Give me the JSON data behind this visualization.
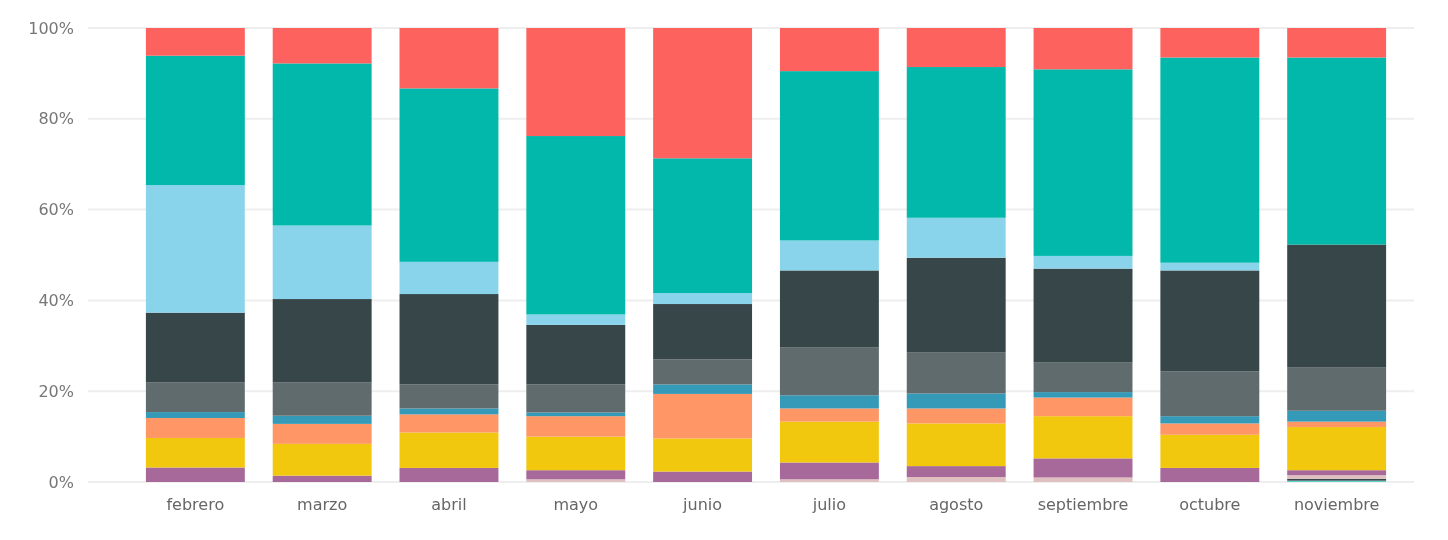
{
  "chart_data": {
    "type": "bar",
    "stacked": true,
    "categories": [
      "febrero",
      "marzo",
      "abril",
      "mayo",
      "junio",
      "julio",
      "agosto",
      "septiembre",
      "octubre",
      "noviembre"
    ],
    "series": [
      {
        "color": "#5fd3c9",
        "values": [
          null,
          null,
          null,
          null,
          null,
          null,
          null,
          null,
          null,
          0.3
        ]
      },
      {
        "color": "#374649",
        "values": [
          null,
          null,
          null,
          null,
          null,
          null,
          null,
          null,
          null,
          0.4
        ]
      },
      {
        "color": "#dfbfbf",
        "values": [
          null,
          null,
          null,
          0.6,
          null,
          0.6,
          1.1,
          1.0,
          null,
          0.8
        ]
      },
      {
        "color": "#a66999",
        "values": [
          3.2,
          1.4,
          3.1,
          2.0,
          2.3,
          3.7,
          2.4,
          4.2,
          3.1,
          1.1
        ]
      },
      {
        "color": "#f2c80f",
        "values": [
          6.5,
          7.0,
          7.8,
          7.4,
          7.3,
          9.0,
          9.4,
          9.3,
          7.3,
          9.5
        ]
      },
      {
        "color": "#fe9666",
        "values": [
          4.4,
          4.4,
          4.0,
          4.5,
          9.8,
          2.9,
          3.3,
          4.1,
          2.5,
          1.2
        ]
      },
      {
        "color": "#3599b8",
        "values": [
          1.3,
          1.8,
          1.3,
          0.8,
          2.1,
          2.9,
          3.3,
          1.2,
          1.6,
          2.4
        ]
      },
      {
        "color": "#5f6b6d",
        "values": [
          6.5,
          7.3,
          5.3,
          6.2,
          5.5,
          10.6,
          9.0,
          6.6,
          9.9,
          9.6
        ]
      },
      {
        "color": "#374649",
        "values": [
          15.4,
          18.4,
          19.9,
          13.1,
          12.2,
          16.9,
          20.9,
          20.6,
          22.2,
          27.0
        ]
      },
      {
        "color": "#8ad4eb",
        "values": [
          28.1,
          16.2,
          7.1,
          2.3,
          2.4,
          6.6,
          8.8,
          2.8,
          1.7,
          null
        ]
      },
      {
        "color": "#01b8aa",
        "values": [
          28.5,
          35.7,
          38.2,
          39.3,
          29.7,
          37.3,
          33.2,
          41.1,
          45.2,
          41.2
        ]
      },
      {
        "color": "#fd625e",
        "values": [
          6.1,
          7.8,
          13.3,
          23.8,
          28.7,
          9.5,
          8.6,
          9.1,
          6.5,
          6.5
        ]
      }
    ],
    "ylim": [
      0,
      100
    ],
    "yticks": [
      {
        "value": 0,
        "label": "0%"
      },
      {
        "value": 20,
        "label": "20%"
      },
      {
        "value": 40,
        "label": "40%"
      },
      {
        "value": 60,
        "label": "60%"
      },
      {
        "value": 80,
        "label": "80%"
      },
      {
        "value": 100,
        "label": "100%"
      }
    ],
    "grid": "y"
  }
}
